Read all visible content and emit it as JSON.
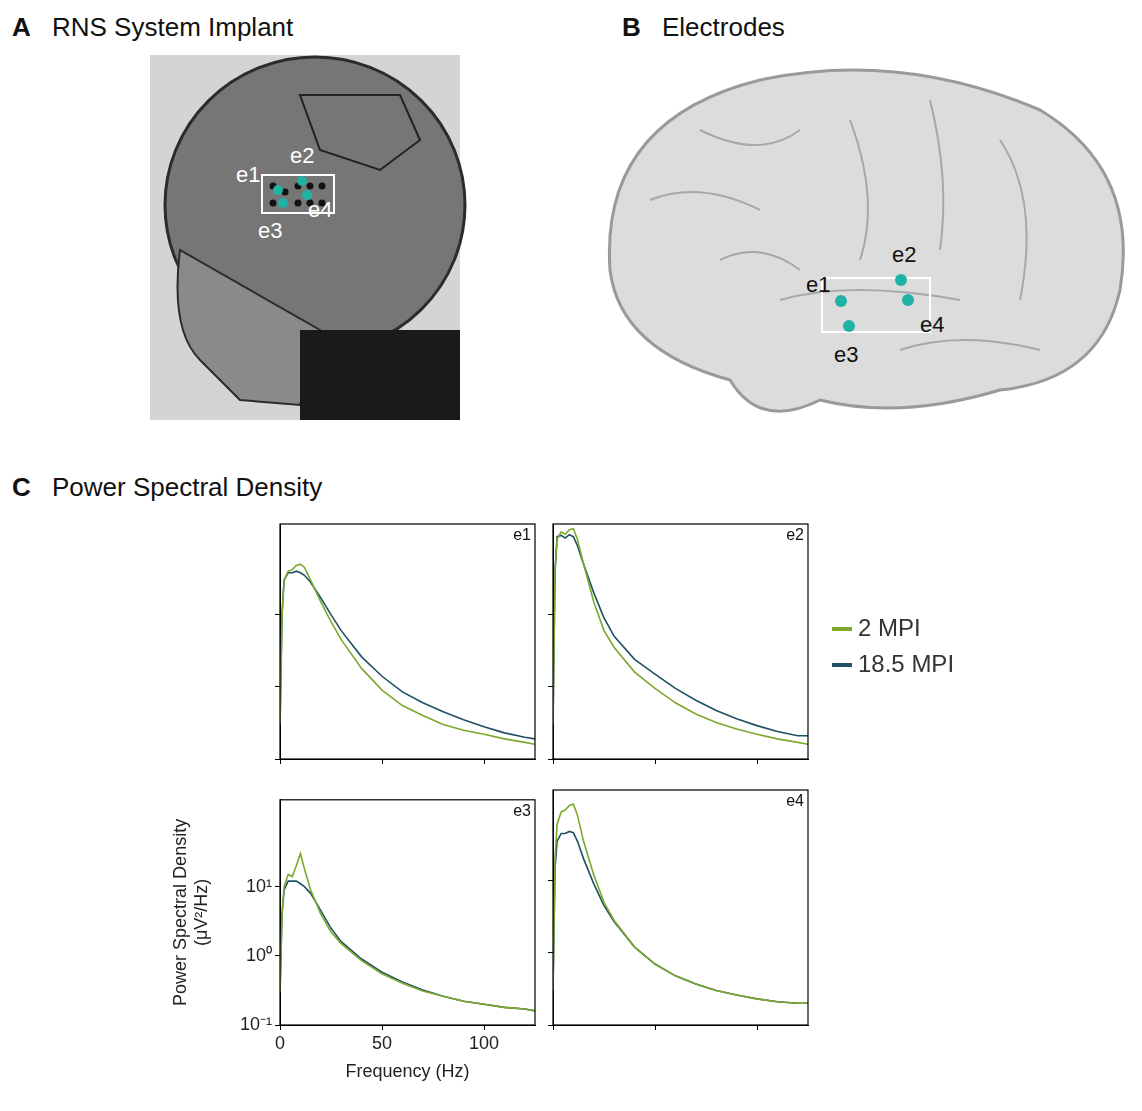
{
  "panels": [
    {
      "letter": "A",
      "title": "RNS System Implant",
      "electrodes": [
        "e1",
        "e2",
        "e3",
        "e4"
      ]
    },
    {
      "letter": "B",
      "title": "Electrodes",
      "electrodes": [
        "e1",
        "e2",
        "e3",
        "e4"
      ]
    },
    {
      "letter": "C",
      "title": "Power Spectral Density"
    }
  ],
  "chart_data": [
    {
      "type": "line",
      "title": "e1",
      "x": [
        0,
        1,
        2,
        4,
        6,
        8,
        10,
        12,
        15,
        20,
        25,
        30,
        40,
        50,
        60,
        70,
        80,
        90,
        100,
        110,
        120,
        125
      ],
      "series": [
        {
          "name": "2 MPI",
          "color": "#7ca82b",
          "values": [
            0.3,
            10,
            30,
            40,
            42,
            48,
            50,
            45,
            30,
            15,
            8,
            4.5,
            1.8,
            0.9,
            0.55,
            0.4,
            0.3,
            0.25,
            0.22,
            0.19,
            0.17,
            0.16
          ]
        },
        {
          "name": "18.5 MPI",
          "color": "#1f5063",
          "values": [
            0.3,
            10,
            30,
            38,
            38,
            40,
            38,
            35,
            28,
            17,
            10,
            6,
            2.6,
            1.4,
            0.85,
            0.6,
            0.45,
            0.35,
            0.28,
            0.23,
            0.2,
            0.19
          ]
        }
      ],
      "xlim": [
        0,
        125
      ],
      "xticks": [
        0,
        50,
        100
      ],
      "ylim": [
        0.1,
        180
      ],
      "yticks": [
        {
          "value": 0.1,
          "label": "10⁻¹"
        },
        {
          "value": 1,
          "label": "10⁰"
        },
        {
          "value": 10,
          "label": "10¹"
        }
      ],
      "log": "y",
      "grid": false,
      "tick_labels": false
    },
    {
      "type": "line",
      "title": "e2",
      "x": [
        0,
        1,
        2,
        4,
        6,
        8,
        10,
        12,
        15,
        20,
        25,
        30,
        40,
        50,
        60,
        70,
        80,
        90,
        100,
        110,
        120,
        125
      ],
      "series": [
        {
          "name": "2 MPI",
          "color": "#7ca82b",
          "values": [
            0.3,
            40,
            110,
            140,
            130,
            150,
            155,
            110,
            50,
            15,
            6,
            3.5,
            1.6,
            0.95,
            0.6,
            0.42,
            0.32,
            0.26,
            0.22,
            0.19,
            0.17,
            0.16
          ]
        },
        {
          "name": "18.5 MPI",
          "color": "#1f5063",
          "values": [
            0.3,
            40,
            120,
            125,
            115,
            128,
            120,
            90,
            50,
            20,
            9,
            5,
            2.4,
            1.5,
            0.95,
            0.65,
            0.47,
            0.36,
            0.29,
            0.24,
            0.21,
            0.21
          ]
        }
      ],
      "xlim": [
        0,
        125
      ],
      "xticks": [
        0,
        50,
        100
      ],
      "ylim": [
        0.1,
        180
      ],
      "yticks": [
        {
          "value": 0.1,
          "label": "10⁻¹"
        },
        {
          "value": 1,
          "label": "10⁰"
        },
        {
          "value": 10,
          "label": "10¹"
        }
      ],
      "log": "y",
      "grid": false,
      "tick_labels": false,
      "legend": "right"
    },
    {
      "type": "line",
      "title": "e3",
      "x": [
        0,
        1,
        2,
        4,
        6,
        8,
        10,
        12,
        15,
        20,
        25,
        30,
        40,
        50,
        60,
        70,
        80,
        90,
        100,
        110,
        120,
        125
      ],
      "series": [
        {
          "name": "2 MPI",
          "color": "#7ca82b",
          "values": [
            0.3,
            4,
            10,
            15,
            14,
            20,
            30,
            18,
            9,
            4,
            2.2,
            1.5,
            0.85,
            0.55,
            0.4,
            0.31,
            0.26,
            0.22,
            0.2,
            0.18,
            0.17,
            0.16
          ]
        },
        {
          "name": "18.5 MPI",
          "color": "#1f5063",
          "values": [
            0.3,
            4,
            9,
            12,
            12,
            12,
            11,
            10,
            8,
            4.5,
            2.5,
            1.6,
            0.9,
            0.58,
            0.42,
            0.32,
            0.26,
            0.22,
            0.2,
            0.18,
            0.17,
            0.16
          ]
        }
      ],
      "x_label": "Frequency (Hz)",
      "y_label": "Power Spectral Density (μV²/Hz)",
      "xlim": [
        0,
        125
      ],
      "xticks": [
        0,
        50,
        100
      ],
      "ylim": [
        0.1,
        180
      ],
      "yticks": [
        {
          "value": 0.1,
          "label": "10⁻¹"
        },
        {
          "value": 1,
          "label": "10⁰"
        },
        {
          "value": 10,
          "label": "10¹"
        }
      ],
      "log": "y",
      "grid": false
    },
    {
      "type": "line",
      "title": "e4",
      "x": [
        0,
        1,
        2,
        4,
        6,
        8,
        10,
        12,
        15,
        20,
        25,
        30,
        40,
        50,
        60,
        70,
        80,
        90,
        100,
        110,
        120,
        125
      ],
      "series": [
        {
          "name": "2 MPI",
          "color": "#7ca82b",
          "values": [
            0.3,
            20,
            60,
            90,
            95,
            110,
            115,
            80,
            35,
            12,
            5,
            2.8,
            1.2,
            0.7,
            0.48,
            0.37,
            0.3,
            0.26,
            0.23,
            0.21,
            0.2,
            0.2
          ]
        },
        {
          "name": "18.5 MPI",
          "color": "#1f5063",
          "values": [
            0.3,
            15,
            35,
            45,
            45,
            48,
            46,
            35,
            20,
            9,
            4.5,
            2.7,
            1.2,
            0.7,
            0.48,
            0.37,
            0.3,
            0.26,
            0.23,
            0.21,
            0.2,
            0.2
          ]
        }
      ],
      "xlim": [
        0,
        125
      ],
      "xticks": [
        0,
        50,
        100
      ],
      "ylim": [
        0.1,
        180
      ],
      "yticks": [
        {
          "value": 0.1,
          "label": "10⁻¹"
        },
        {
          "value": 1,
          "label": "10⁰"
        },
        {
          "value": 10,
          "label": "10¹"
        }
      ],
      "log": "y",
      "grid": false,
      "tick_labels": false
    }
  ]
}
